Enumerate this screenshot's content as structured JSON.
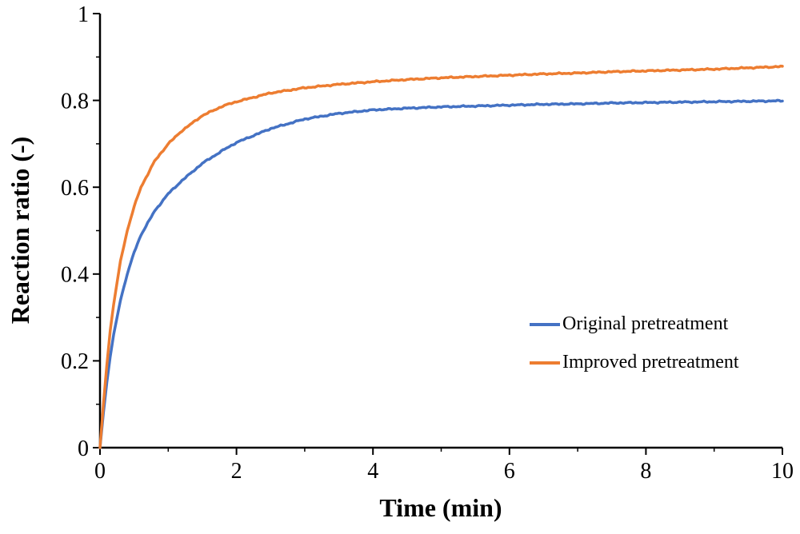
{
  "chart_data": {
    "type": "line",
    "title": "",
    "xlabel": "Time (min)",
    "ylabel": "Reaction ratio (-)",
    "xlim": [
      0,
      10
    ],
    "ylim": [
      0,
      1
    ],
    "x_ticks": [
      0,
      2,
      4,
      6,
      8,
      10
    ],
    "x_minor_ticks": [
      1,
      3,
      5,
      7,
      9
    ],
    "y_ticks": [
      0,
      0.2,
      0.4,
      0.6,
      0.8,
      1
    ],
    "y_minor_ticks": [
      0.1,
      0.3,
      0.5,
      0.7,
      0.9
    ],
    "grid": false,
    "legend_position": "inside-lower-right",
    "axis_color": "#000000",
    "x": [
      0,
      0.05,
      0.1,
      0.15,
      0.2,
      0.3,
      0.4,
      0.5,
      0.6,
      0.8,
      1,
      1.2,
      1.5,
      1.8,
      2,
      2.5,
      3,
      3.5,
      4,
      4.5,
      5,
      5.5,
      6,
      6.5,
      7,
      7.5,
      8,
      8.5,
      9,
      9.5,
      10
    ],
    "series": [
      {
        "name": "Original pretreatment",
        "color": "#4472C4",
        "values": [
          0,
          0.08,
          0.15,
          0.21,
          0.26,
          0.34,
          0.4,
          0.45,
          0.49,
          0.545,
          0.585,
          0.615,
          0.655,
          0.685,
          0.703,
          0.735,
          0.757,
          0.77,
          0.778,
          0.782,
          0.785,
          0.787,
          0.789,
          0.791,
          0.792,
          0.794,
          0.795,
          0.796,
          0.797,
          0.798,
          0.799
        ]
      },
      {
        "name": "Improved pretreatment",
        "color": "#ED7D31",
        "values": [
          0,
          0.1,
          0.19,
          0.27,
          0.33,
          0.43,
          0.5,
          0.555,
          0.6,
          0.66,
          0.7,
          0.73,
          0.765,
          0.787,
          0.797,
          0.817,
          0.829,
          0.837,
          0.843,
          0.848,
          0.852,
          0.855,
          0.858,
          0.861,
          0.863,
          0.866,
          0.868,
          0.87,
          0.872,
          0.875,
          0.878
        ]
      }
    ]
  }
}
